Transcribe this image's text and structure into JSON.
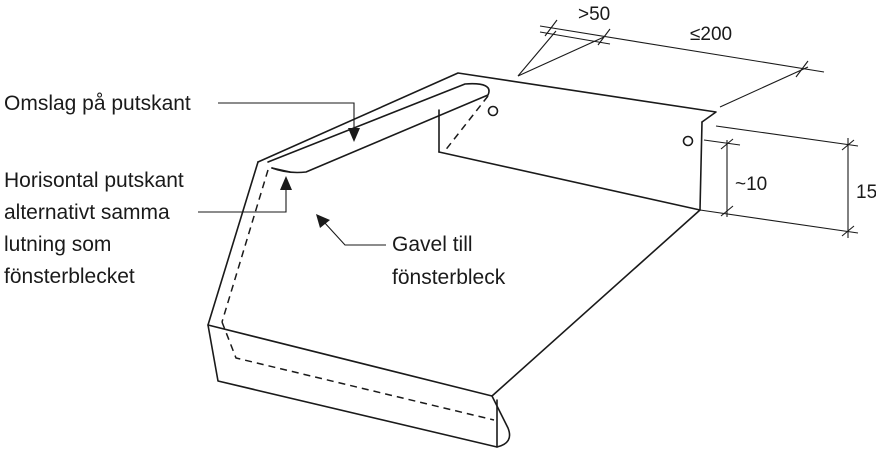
{
  "labels": {
    "omslag": "Omslag på putskant",
    "horisontal": [
      "Horisontal putskant",
      "alternativt samma",
      "lutning som",
      "fönsterblecket"
    ],
    "gavel": [
      "Gavel till",
      "fönsterbleck"
    ]
  },
  "dimensions": {
    "top_small": ">50",
    "top_large": "≤200",
    "side_small": "~10",
    "side_large": "15"
  }
}
